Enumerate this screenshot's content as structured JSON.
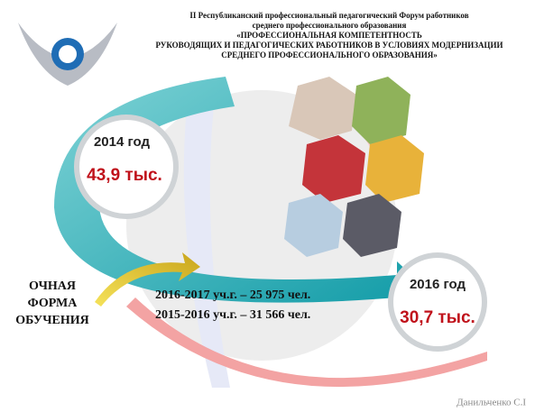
{
  "header": {
    "lines": [
      "II Республиканский профессиональный педагогический Форум работников",
      "среднего профессионального образования",
      "«ПРОФЕССИОНАЛЬНАЯ КОМПЕТЕНТНОСТЬ",
      "РУКОВОДЯЩИХ И ПЕДАГОГИЧЕСКИХ РАБОТНИКОВ В УСЛОВИЯХ МОДЕРНИЗАЦИИ",
      "СРЕДНЕГО ПРОФЕССИОНАЛЬНОГО ОБРАЗОВАНИЯ»"
    ]
  },
  "callouts": [
    {
      "year": "2014 год",
      "value": "43,9 тыс."
    },
    {
      "year": "2016 год",
      "value": "30,7 тыс."
    }
  ],
  "label": {
    "lines": [
      "ОЧНАЯ",
      "ФОРМА",
      "ОБУЧЕНИЯ"
    ]
  },
  "stats": [
    "2016-2017 уч.г. – 25 975 чел.",
    "2015-2016 уч.г. – 31 566 чел."
  ],
  "author": "Данильченко С.I"
}
